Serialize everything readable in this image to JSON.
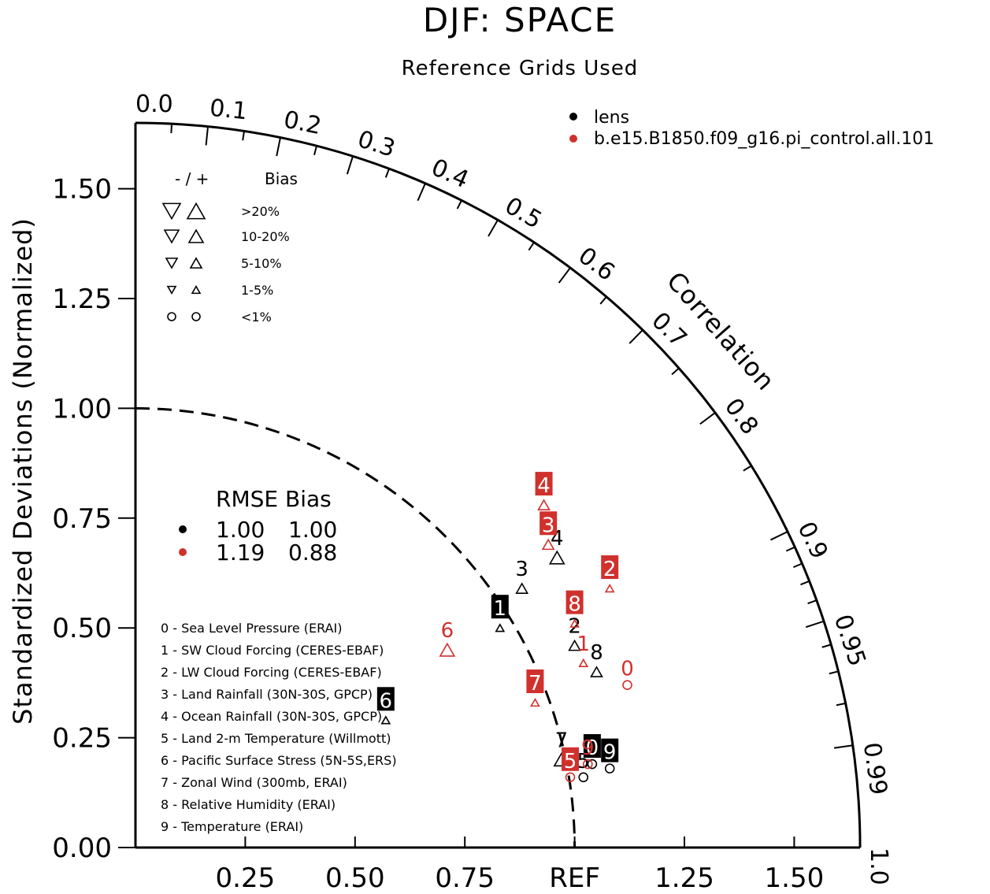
{
  "chart_data": {
    "type": "scatter",
    "diagram": "taylor",
    "title": "DJF: SPACE",
    "subtitle": "Reference Grids Used",
    "ylabel": "Standardized Deviations (Normalized)",
    "arc_label": "Correlation",
    "ref_label": "REF",
    "ylim": [
      0,
      1.65
    ],
    "y_ticks": [
      "0.00",
      "0.25",
      "0.50",
      "0.75",
      "1.00",
      "1.25",
      "1.50"
    ],
    "x_ticks": [
      "0.25",
      "0.50",
      "0.75",
      "REF",
      "1.25",
      "1.50"
    ],
    "corr_ticks": [
      "0.0",
      "0.1",
      "0.2",
      "0.3",
      "0.4",
      "0.5",
      "0.6",
      "0.7",
      "0.8",
      "0.9",
      "0.95",
      "0.99",
      "1.0"
    ],
    "legend_position": "top-right",
    "series": [
      {
        "name": "lens",
        "color": "#000000",
        "rmse": "1.00",
        "bias": "1.00",
        "points": [
          {
            "id": "0",
            "x": 1.04,
            "y": 0.19,
            "marker": "circle",
            "boxed": true
          },
          {
            "id": "1",
            "x": 0.83,
            "y": 0.5,
            "marker": "up-triangle",
            "size": "small",
            "boxed": true
          },
          {
            "id": "2",
            "x": 1.0,
            "y": 0.46,
            "marker": "up-triangle",
            "size": "medium",
            "boxed": false
          },
          {
            "id": "3",
            "x": 0.88,
            "y": 0.59,
            "marker": "up-triangle",
            "size": "medium",
            "boxed": false
          },
          {
            "id": "4",
            "x": 0.96,
            "y": 0.66,
            "marker": "up-triangle",
            "size": "large",
            "boxed": false
          },
          {
            "id": "5",
            "x": 1.02,
            "y": 0.16,
            "marker": "circle",
            "boxed": false
          },
          {
            "id": "6",
            "x": 0.57,
            "y": 0.29,
            "marker": "up-triangle",
            "size": "small",
            "boxed": true
          },
          {
            "id": "7",
            "x": 0.97,
            "y": 0.2,
            "marker": "up-triangle",
            "size": "large",
            "boxed": false
          },
          {
            "id": "8",
            "x": 1.05,
            "y": 0.4,
            "marker": "up-triangle",
            "size": "medium",
            "boxed": false
          },
          {
            "id": "9",
            "x": 1.08,
            "y": 0.18,
            "marker": "circle",
            "boxed": true
          }
        ]
      },
      {
        "name": "b.e15.B1850.f09_g16.pi_control.all.101",
        "color": "#d0312d",
        "rmse": "1.19",
        "bias": "0.88",
        "points": [
          {
            "id": "0",
            "x": 1.12,
            "y": 0.37,
            "marker": "circle",
            "boxed": false
          },
          {
            "id": "1",
            "x": 1.02,
            "y": 0.42,
            "marker": "up-triangle",
            "size": "small",
            "boxed": false
          },
          {
            "id": "2",
            "x": 1.08,
            "y": 0.59,
            "marker": "up-triangle",
            "size": "small",
            "boxed": true
          },
          {
            "id": "3",
            "x": 0.94,
            "y": 0.69,
            "marker": "up-triangle",
            "size": "medium",
            "boxed": true
          },
          {
            "id": "4",
            "x": 0.93,
            "y": 0.78,
            "marker": "up-triangle",
            "size": "medium",
            "boxed": true
          },
          {
            "id": "5",
            "x": 0.99,
            "y": 0.16,
            "marker": "circle",
            "boxed": true
          },
          {
            "id": "6",
            "x": 0.71,
            "y": 0.45,
            "marker": "up-triangle",
            "size": "large",
            "boxed": false
          },
          {
            "id": "7",
            "x": 0.91,
            "y": 0.33,
            "marker": "up-triangle",
            "size": "small",
            "boxed": true
          },
          {
            "id": "8",
            "x": 1.0,
            "y": 0.51,
            "marker": "up-triangle",
            "size": "small",
            "boxed": true
          },
          {
            "id": "9",
            "x": 1.03,
            "y": 0.19,
            "marker": "circle",
            "boxed": false
          }
        ]
      }
    ],
    "variables": [
      "0 - Sea Level Pressure (ERAI)",
      "1 - SW Cloud Forcing (CERES-EBAF)",
      "2 - LW Cloud Forcing (CERES-EBAF)",
      "3 - Land Rainfall (30N-30S, GPCP)",
      "4 - Ocean Rainfall (30N-30S, GPCP)",
      "5 - Land 2-m Temperature (Willmott)",
      "6 - Pacific Surface Stress (5N-5S,ERS)",
      "7 - Zonal Wind (300mb, ERAI)",
      "8 - Relative Humidity (ERAI)",
      "9 - Temperature (ERAI)"
    ],
    "bias_key": {
      "header_sign": "- / +",
      "header_label": "Bias",
      "rows": [
        ">20%",
        "10-20%",
        "5-10%",
        "1-5%",
        "<1%"
      ]
    },
    "stats_header": "RMSE Bias"
  }
}
